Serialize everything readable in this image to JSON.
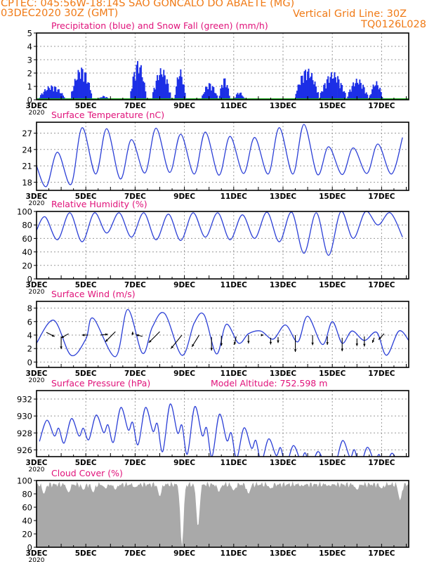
{
  "header": {
    "line1": "CPTEC:   045:56W-18:14S  SAO GONCALO DO ABAETE (MG)",
    "line2_left": "03DEC2020 30Z (GMT)",
    "line2_right": "Vertical Grid Line: 30Z",
    "run_id": "TQ0126L028"
  },
  "colors": {
    "header": "#f07a16",
    "panel_title": "#e0127a",
    "line": "#2b3fd6",
    "precip_bar": "#1c2fe6",
    "snow": "#1aa51a",
    "cloud_fill": "#a9a9a9",
    "grid": "#9a9a9a",
    "arrow": "#000000"
  },
  "x_axis": {
    "ticks": [
      "3DEC",
      "5DEC",
      "7DEC",
      "9DEC",
      "11DEC",
      "13DEC",
      "15DEC",
      "17DEC"
    ],
    "tick_days": [
      3,
      5,
      7,
      9,
      11,
      13,
      15,
      17
    ],
    "range_days": [
      3,
      18.1
    ],
    "year_label": "2020"
  },
  "chart_data": [
    {
      "id": "precip",
      "type": "bar",
      "title": "Precipitation (blue) and Snow Fall (green) (mm/h)",
      "ylim": [
        0,
        5
      ],
      "yticks": [
        0,
        1,
        2,
        3,
        4,
        5
      ],
      "grid": true,
      "clusters": [
        {
          "x": [
            3.1,
            4.1
          ],
          "peak": 1.1
        },
        {
          "x": [
            4.4,
            5.2
          ],
          "peak": 2.5
        },
        {
          "x": [
            5.5,
            5.9
          ],
          "peak": 0.3
        },
        {
          "x": [
            6.8,
            7.4
          ],
          "peak": 3.0
        },
        {
          "x": [
            7.7,
            8.4
          ],
          "peak": 2.4
        },
        {
          "x": [
            8.6,
            9.0
          ],
          "peak": 2.3
        },
        {
          "x": [
            9.7,
            10.3
          ],
          "peak": 1.3
        },
        {
          "x": [
            10.4,
            10.8
          ],
          "peak": 1.7
        },
        {
          "x": [
            11.0,
            11.4
          ],
          "peak": 0.6
        },
        {
          "x": [
            12.0,
            12.3
          ],
          "peak": 0.1
        },
        {
          "x": [
            13.5,
            14.4
          ],
          "peak": 2.4
        },
        {
          "x": [
            14.5,
            15.5
          ],
          "peak": 2.1
        },
        {
          "x": [
            15.6,
            16.4
          ],
          "peak": 1.6
        },
        {
          "x": [
            16.5,
            17.0
          ],
          "peak": 1.4
        }
      ],
      "snow_mm_h": 0
    },
    {
      "id": "temperature",
      "type": "line",
      "title": "Surface Temperature (nC)",
      "ylim": [
        16.5,
        29
      ],
      "yticks": [
        18,
        21,
        24,
        27
      ],
      "grid": true,
      "daily_min": [
        17.2,
        17.6,
        19.5,
        18.6,
        19.7,
        19.8,
        19.5,
        19.3,
        19.6,
        19.5,
        19.5,
        19.4,
        19.4,
        19.6,
        19.5,
        19.3
      ],
      "daily_max": [
        23.5,
        28.0,
        27.8,
        25.8,
        27.9,
        26.8,
        27.2,
        26.4,
        26.2,
        28.0,
        28.6,
        24.5,
        24.3,
        25.0,
        26.2,
        28.4
      ]
    },
    {
      "id": "humidity",
      "type": "line",
      "title": "Relative Humidity (%)",
      "ylim": [
        0,
        100
      ],
      "yticks": [
        0,
        20,
        40,
        60,
        80,
        100
      ],
      "grid": true,
      "daily_min": [
        58,
        55,
        68,
        62,
        58,
        57,
        62,
        58,
        60,
        55,
        38,
        35,
        60,
        80,
        62,
        45,
        37
      ],
      "daily_max": [
        92,
        98,
        98,
        98,
        98,
        96,
        98,
        98,
        95,
        99,
        99,
        98,
        100,
        100,
        98,
        95,
        85
      ]
    },
    {
      "id": "wind",
      "type": "line",
      "title": "Surface Wind (m/s)",
      "ylim": [
        -0.8,
        9
      ],
      "yticks": [
        0,
        2,
        4,
        6,
        8
      ],
      "grid": true,
      "speed_knots": [
        [
          3.0,
          2.8
        ],
        [
          3.7,
          6.2
        ],
        [
          4.4,
          1.0
        ],
        [
          5.0,
          3.4
        ],
        [
          5.3,
          6.5
        ],
        [
          6.2,
          0.8
        ],
        [
          6.7,
          7.8
        ],
        [
          7.3,
          1.3
        ],
        [
          7.7,
          5.2
        ],
        [
          8.2,
          7.2
        ],
        [
          8.9,
          1.0
        ],
        [
          9.4,
          5.8
        ],
        [
          9.8,
          7.0
        ],
        [
          10.3,
          1.2
        ],
        [
          10.7,
          5.6
        ],
        [
          11.2,
          2.8
        ],
        [
          11.6,
          4.2
        ],
        [
          12.1,
          4.6
        ],
        [
          12.6,
          3.4
        ],
        [
          13.1,
          5.5
        ],
        [
          13.6,
          3.0
        ],
        [
          14.0,
          6.8
        ],
        [
          14.6,
          2.6
        ],
        [
          15.0,
          6.0
        ],
        [
          15.4,
          2.8
        ],
        [
          15.8,
          4.6
        ],
        [
          16.3,
          3.2
        ],
        [
          16.8,
          4.4
        ],
        [
          17.2,
          1.0
        ],
        [
          17.7,
          4.6
        ],
        [
          18.1,
          3.2
        ]
      ],
      "arrows": [
        {
          "x": 3.4,
          "y": 4.4,
          "dx": 0.45,
          "dy": -0.5
        },
        {
          "x": 4.0,
          "y": 3.8,
          "dx": 0.0,
          "dy": -1.5
        },
        {
          "x": 4.3,
          "y": 4.2,
          "dx": -0.4,
          "dy": -0.5
        },
        {
          "x": 5.1,
          "y": 4.0,
          "dx": -0.35,
          "dy": 0.0
        },
        {
          "x": 5.6,
          "y": 4.0,
          "dx": 0.4,
          "dy": 0.1
        },
        {
          "x": 6.2,
          "y": 4.5,
          "dx": -0.55,
          "dy": -1.2
        },
        {
          "x": 6.9,
          "y": 4.0,
          "dx": 0.0,
          "dy": 0.4
        },
        {
          "x": 7.3,
          "y": 3.8,
          "dx": -0.35,
          "dy": 0.2
        },
        {
          "x": 8.0,
          "y": 4.5,
          "dx": -0.6,
          "dy": -1.3
        },
        {
          "x": 8.9,
          "y": 4.0,
          "dx": -0.6,
          "dy": -1.6
        },
        {
          "x": 9.6,
          "y": 4.0,
          "dx": -0.4,
          "dy": -1.4
        },
        {
          "x": 10.1,
          "y": 3.7,
          "dx": 0.0,
          "dy": -1.6
        },
        {
          "x": 10.5,
          "y": 3.9,
          "dx": 0.0,
          "dy": -1.2
        },
        {
          "x": 11.1,
          "y": 3.8,
          "dx": -0.1,
          "dy": -1.0
        },
        {
          "x": 11.6,
          "y": 4.0,
          "dx": 0.0,
          "dy": -1.0
        },
        {
          "x": 12.1,
          "y": 4.0,
          "dx": 0.15,
          "dy": 0.0
        },
        {
          "x": 12.5,
          "y": 3.6,
          "dx": 0.0,
          "dy": -0.8
        },
        {
          "x": 12.8,
          "y": 3.7,
          "dx": 0.0,
          "dy": -0.7
        },
        {
          "x": 13.5,
          "y": 4.0,
          "dx": 0.0,
          "dy": -2.0
        },
        {
          "x": 14.2,
          "y": 4.0,
          "dx": 0.0,
          "dy": -1.2
        },
        {
          "x": 14.8,
          "y": 3.8,
          "dx": 0.0,
          "dy": -1.0
        },
        {
          "x": 15.4,
          "y": 3.6,
          "dx": 0.0,
          "dy": -1.6
        },
        {
          "x": 16.0,
          "y": 3.5,
          "dx": 0.0,
          "dy": -0.9
        },
        {
          "x": 16.3,
          "y": 3.8,
          "dx": 0.0,
          "dy": -1.2
        },
        {
          "x": 16.7,
          "y": 3.6,
          "dx": -0.1,
          "dy": -0.6
        },
        {
          "x": 17.1,
          "y": 4.2,
          "dx": -0.3,
          "dy": -0.7
        }
      ]
    },
    {
      "id": "pressure",
      "type": "line",
      "title": "Surface Pressure (hPa)",
      "subtitle": "Model Altitude: 752.598  m",
      "ylim": [
        925.2,
        933
      ],
      "yticks": [
        926,
        928,
        930,
        932
      ],
      "grid": true,
      "daily_max": [
        929.5,
        929.7,
        930.1,
        931.0,
        931.0,
        931.4,
        931.1,
        930.2,
        928.6,
        927.3,
        926.5,
        925.8,
        927.1,
        926.3,
        925.6
      ],
      "daily_min": [
        927.0,
        926.8,
        927.2,
        926.9,
        926.6,
        925.8,
        925.5,
        925.2,
        925.0,
        924.6,
        924.2,
        924.0,
        924.3,
        924.0,
        923.8
      ]
    },
    {
      "id": "cloud",
      "type": "area",
      "title": "Cloud Cover (%)",
      "ylim": [
        0,
        100
      ],
      "yticks": [
        0,
        20,
        40,
        60,
        80,
        100
      ],
      "grid": false,
      "level": 94,
      "dips": [
        {
          "x": 3.3,
          "v": 80
        },
        {
          "x": 4.3,
          "v": 82
        },
        {
          "x": 4.9,
          "v": 86
        },
        {
          "x": 5.3,
          "v": 82
        },
        {
          "x": 5.8,
          "v": 88
        },
        {
          "x": 6.2,
          "v": 86
        },
        {
          "x": 7.0,
          "v": 90
        },
        {
          "x": 8.0,
          "v": 76
        },
        {
          "x": 8.9,
          "v": 0
        },
        {
          "x": 9.55,
          "v": 30
        },
        {
          "x": 10.4,
          "v": 83
        },
        {
          "x": 11.0,
          "v": 85
        },
        {
          "x": 11.6,
          "v": 80
        },
        {
          "x": 12.5,
          "v": 88
        },
        {
          "x": 13.8,
          "v": 92
        },
        {
          "x": 14.9,
          "v": 92
        },
        {
          "x": 16.0,
          "v": 86
        },
        {
          "x": 17.0,
          "v": 88
        },
        {
          "x": 17.75,
          "v": 70
        }
      ]
    }
  ]
}
